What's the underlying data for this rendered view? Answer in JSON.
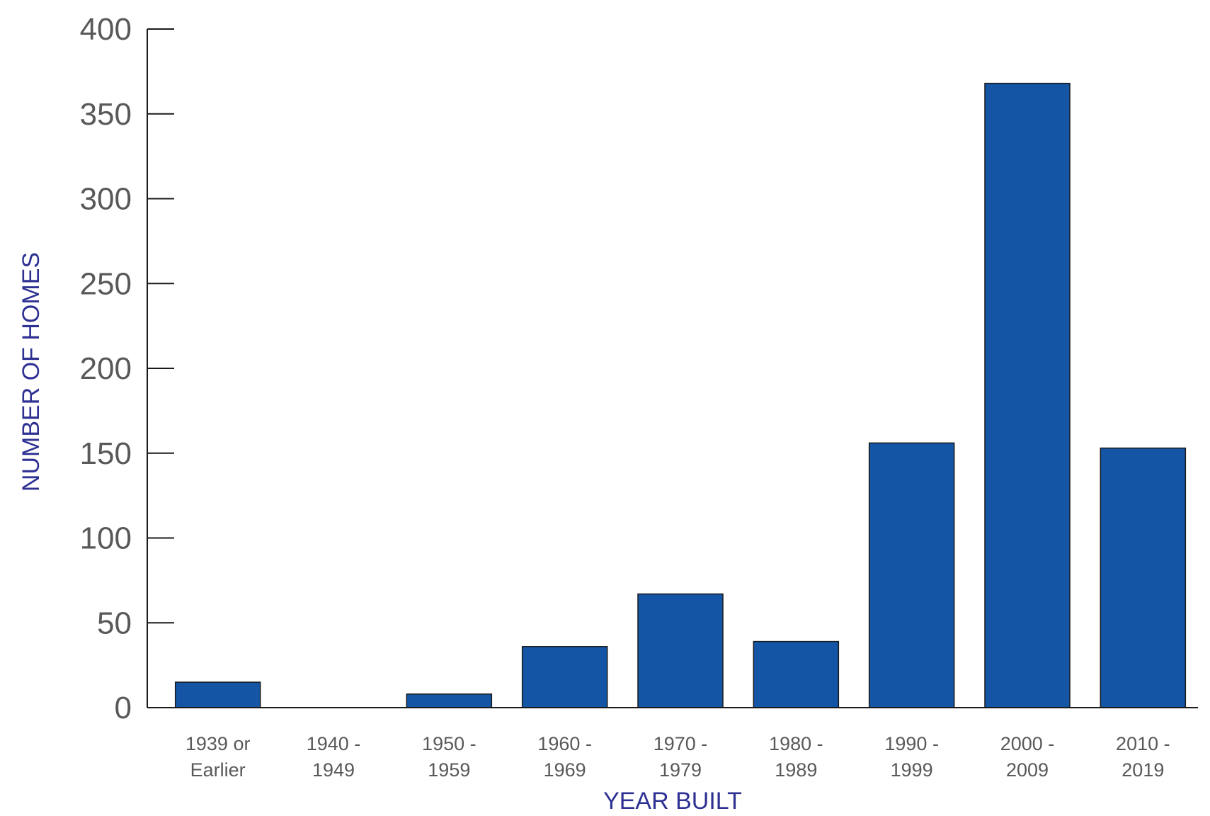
{
  "chart_data": {
    "type": "bar",
    "title": "",
    "xlabel": "YEAR BUILT",
    "ylabel": "NUMBER OF HOMES",
    "categories": [
      [
        "1939 or",
        "Earlier"
      ],
      [
        "1940 -",
        "1949"
      ],
      [
        "1950 -",
        "1959"
      ],
      [
        "1960 -",
        "1969"
      ],
      [
        "1970 -",
        "1979"
      ],
      [
        "1980 -",
        "1989"
      ],
      [
        "1990 -",
        "1999"
      ],
      [
        "2000 -",
        "2009"
      ],
      [
        "2010 -",
        "2019"
      ]
    ],
    "values": [
      15,
      0,
      8,
      36,
      67,
      39,
      156,
      368,
      153
    ],
    "ylim": [
      0,
      400
    ],
    "yticks": [
      "0",
      "50",
      "100",
      "150",
      "200",
      "250",
      "300",
      "350",
      "400"
    ],
    "grid": false,
    "legend": "none",
    "colors": {
      "bar": "#1455a5",
      "bar_stroke": "#1a1a1a",
      "axis": "#1a1a1a",
      "tick_text": "#58595b",
      "axis_title": "#2e3192"
    }
  }
}
